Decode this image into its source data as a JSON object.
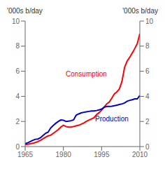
{
  "chart_data": {
    "type": "line",
    "ylabel": "'000s b/day",
    "y2label": "'000s b/day",
    "x": [
      1965,
      1966,
      1967,
      1968,
      1969,
      1970,
      1971,
      1972,
      1973,
      1974,
      1975,
      1976,
      1977,
      1978,
      1979,
      1980,
      1981,
      1982,
      1983,
      1984,
      1985,
      1986,
      1987,
      1988,
      1989,
      1990,
      1991,
      1992,
      1993,
      1994,
      1995,
      1996,
      1997,
      1998,
      1999,
      2000,
      2001,
      2002,
      2003,
      2004,
      2005,
      2006,
      2007,
      2008,
      2009,
      2010
    ],
    "series": [
      {
        "name": "Consumption",
        "color": "#ff0000",
        "values": [
          0.15,
          0.18,
          0.22,
          0.26,
          0.32,
          0.4,
          0.5,
          0.62,
          0.75,
          0.85,
          0.9,
          1.05,
          1.2,
          1.35,
          1.55,
          1.7,
          1.6,
          1.55,
          1.55,
          1.6,
          1.65,
          1.7,
          1.78,
          1.88,
          2.0,
          2.1,
          2.2,
          2.3,
          2.55,
          2.7,
          2.9,
          3.15,
          3.4,
          3.55,
          3.85,
          4.2,
          4.35,
          4.6,
          5.2,
          6.3,
          6.8,
          7.1,
          7.45,
          7.8,
          8.2,
          9.0
        ]
      },
      {
        "name": "Production",
        "color": "#0000cc",
        "values": [
          0.23,
          0.3,
          0.4,
          0.5,
          0.58,
          0.6,
          0.7,
          0.88,
          1.05,
          1.15,
          1.48,
          1.68,
          1.85,
          2.0,
          2.12,
          2.1,
          2.0,
          2.02,
          2.06,
          2.13,
          2.5,
          2.6,
          2.68,
          2.73,
          2.77,
          2.8,
          2.83,
          2.83,
          2.87,
          2.92,
          2.99,
          3.13,
          3.2,
          3.2,
          3.21,
          3.25,
          3.3,
          3.35,
          3.4,
          3.47,
          3.61,
          3.68,
          3.73,
          3.8,
          3.8,
          4.07
        ]
      }
    ],
    "annotations": [
      {
        "text": "Consumption",
        "x": 1989,
        "y": 5.8,
        "color": "#ff0000"
      },
      {
        "text": "Production",
        "x": 1999,
        "y": 2.2,
        "color": "#0000cc"
      }
    ],
    "xlim": [
      1965,
      2010
    ],
    "xticks": [
      1965,
      1980,
      1995,
      2010
    ],
    "ylim": [
      0,
      10
    ],
    "yticks": [
      0,
      2,
      4,
      6,
      8,
      10
    ],
    "y2lim": [
      0,
      10
    ],
    "y2ticks": [
      0,
      2,
      4,
      6,
      8,
      10
    ]
  }
}
